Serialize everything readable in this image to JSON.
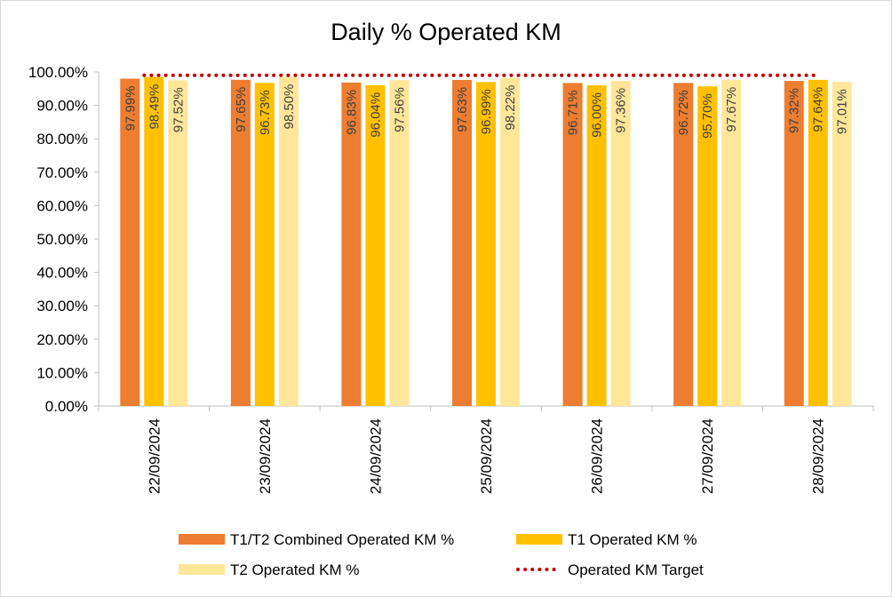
{
  "chart_data": {
    "type": "bar",
    "title": "Daily % Operated KM",
    "xlabel": "",
    "ylabel": "",
    "categories": [
      "22/09/2024",
      "23/09/2024",
      "24/09/2024",
      "25/09/2024",
      "26/09/2024",
      "27/09/2024",
      "28/09/2024"
    ],
    "ylim": [
      0,
      100
    ],
    "yticks": [
      "0.00%",
      "10.00%",
      "20.00%",
      "30.00%",
      "40.00%",
      "50.00%",
      "60.00%",
      "70.00%",
      "80.00%",
      "90.00%",
      "100.00%"
    ],
    "grid": false,
    "legend_position": "bottom",
    "series": [
      {
        "name": "T1/T2 Combined Operated KM %",
        "kind": "bar",
        "color": "#ED7D31",
        "values": [
          97.99,
          97.65,
          96.83,
          97.63,
          96.71,
          96.72,
          97.32
        ],
        "labels": [
          "97.99%",
          "97.65%",
          "96.83%",
          "97.63%",
          "96.71%",
          "96.72%",
          "97.32%"
        ]
      },
      {
        "name": "T1 Operated KM %",
        "kind": "bar",
        "color": "#FFC000",
        "values": [
          98.49,
          96.73,
          96.04,
          96.99,
          96.0,
          95.7,
          97.64
        ],
        "labels": [
          "98.49%",
          "96.73%",
          "96.04%",
          "96.99%",
          "96.00%",
          "95.70%",
          "97.64%"
        ]
      },
      {
        "name": "T2 Operated KM %",
        "kind": "bar",
        "color": "#FFE699",
        "values": [
          97.52,
          98.5,
          97.56,
          98.22,
          97.36,
          97.67,
          97.01
        ],
        "labels": [
          "97.52%",
          "98.50%",
          "97.56%",
          "98.22%",
          "97.36%",
          "97.67%",
          "97.01%"
        ]
      },
      {
        "name": "Operated KM Target",
        "kind": "line",
        "style": "dotted",
        "color": "#C00000",
        "values": [
          99,
          99,
          99,
          99,
          99,
          99,
          99
        ]
      }
    ]
  }
}
